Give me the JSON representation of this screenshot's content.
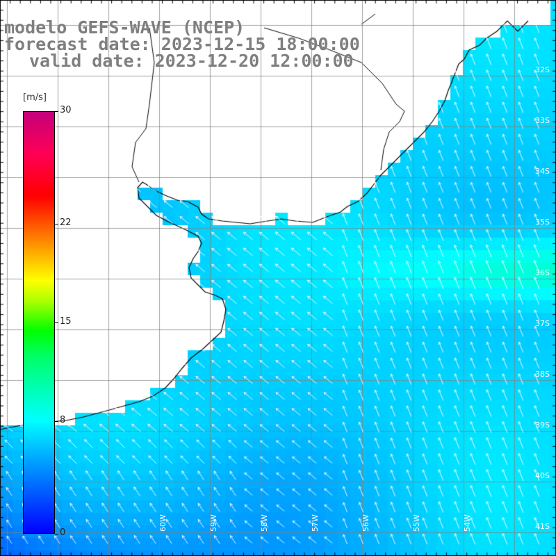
{
  "title": {
    "line1": "modelo GEFS-WAVE (NCEP)",
    "line2": "forecast date: 2023-12-15 18:00:00",
    "line3": "valid date: 2023-12-20 12:00:00"
  },
  "colorbar": {
    "unit": "[m/s]",
    "ticks": [
      "30",
      "22",
      "15",
      "8",
      "0"
    ],
    "tick_values": [
      30,
      22,
      15,
      8,
      0
    ],
    "vmin": 0,
    "vmax": 30,
    "colors": [
      "#0000ff",
      "#00aaff",
      "#00ffff",
      "#00ff00",
      "#ffff00",
      "#ff0000",
      "#c4007a"
    ]
  },
  "lat_labels": [
    "32S",
    "33S",
    "34S",
    "35S",
    "36S",
    "37S",
    "38S",
    "39S",
    "40S",
    "41S"
  ],
  "lon_labels": [
    "60W",
    "59W",
    "58W",
    "57W",
    "56W",
    "55W",
    "54W"
  ],
  "colors": {
    "land": "#ffffff",
    "coast": "#000000",
    "grid": "#808080",
    "arrow": "#ffffff",
    "title": "#7f7f7f"
  }
}
